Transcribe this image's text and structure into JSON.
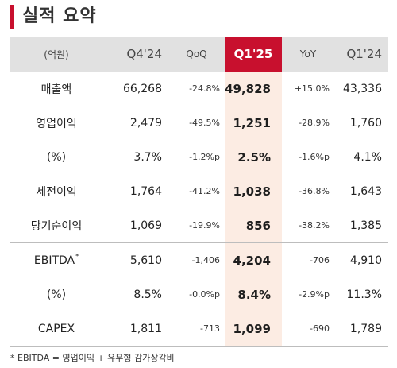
{
  "title": "실적 요약",
  "columns": {
    "label": "(억원)",
    "c1": "Q4'24",
    "c2": "QoQ",
    "c3": "Q1'25",
    "c4": "YoY",
    "c5": "Q1'24"
  },
  "rows": [
    {
      "label": "매출액",
      "marker": "",
      "c1": "66,268",
      "c2": "-24.8%",
      "c3": "49,828",
      "c4": "+15.0%",
      "c5": "43,336"
    },
    {
      "label": "영업이익",
      "marker": "",
      "c1": "2,479",
      "c2": "-49.5%",
      "c3": "1,251",
      "c4": "-28.9%",
      "c5": "1,760"
    },
    {
      "label": "(%)",
      "marker": "",
      "c1": "3.7%",
      "c2": "-1.2%p",
      "c3": "2.5%",
      "c4": "-1.6%p",
      "c5": "4.1%"
    },
    {
      "label": "세전이익",
      "marker": "",
      "c1": "1,764",
      "c2": "-41.2%",
      "c3": "1,038",
      "c4": "-36.8%",
      "c5": "1,643"
    },
    {
      "label": "당기순이익",
      "marker": "",
      "c1": "1,069",
      "c2": "-19.9%",
      "c3": "856",
      "c4": "-38.2%",
      "c5": "1,385"
    },
    {
      "label": "EBITDA",
      "marker": "*",
      "c1": "5,610",
      "c2": "-1,406",
      "c3": "4,204",
      "c4": "-706",
      "c5": "4,910"
    },
    {
      "label": "(%)",
      "marker": "",
      "c1": "8.5%",
      "c2": "-0.0%p",
      "c3": "8.4%",
      "c4": "-2.9%p",
      "c5": "11.3%"
    },
    {
      "label": "CAPEX",
      "marker": "",
      "c1": "1,811",
      "c2": "-713",
      "c3": "1,099",
      "c4": "-690",
      "c5": "1,789"
    }
  ],
  "footnote": "* EBITDA = 영업이익 + 유무형 감가상각비",
  "colors": {
    "accent": "#c8102e",
    "header_bg": "#e1e1e1",
    "highlight_bg": "#fcece3"
  }
}
